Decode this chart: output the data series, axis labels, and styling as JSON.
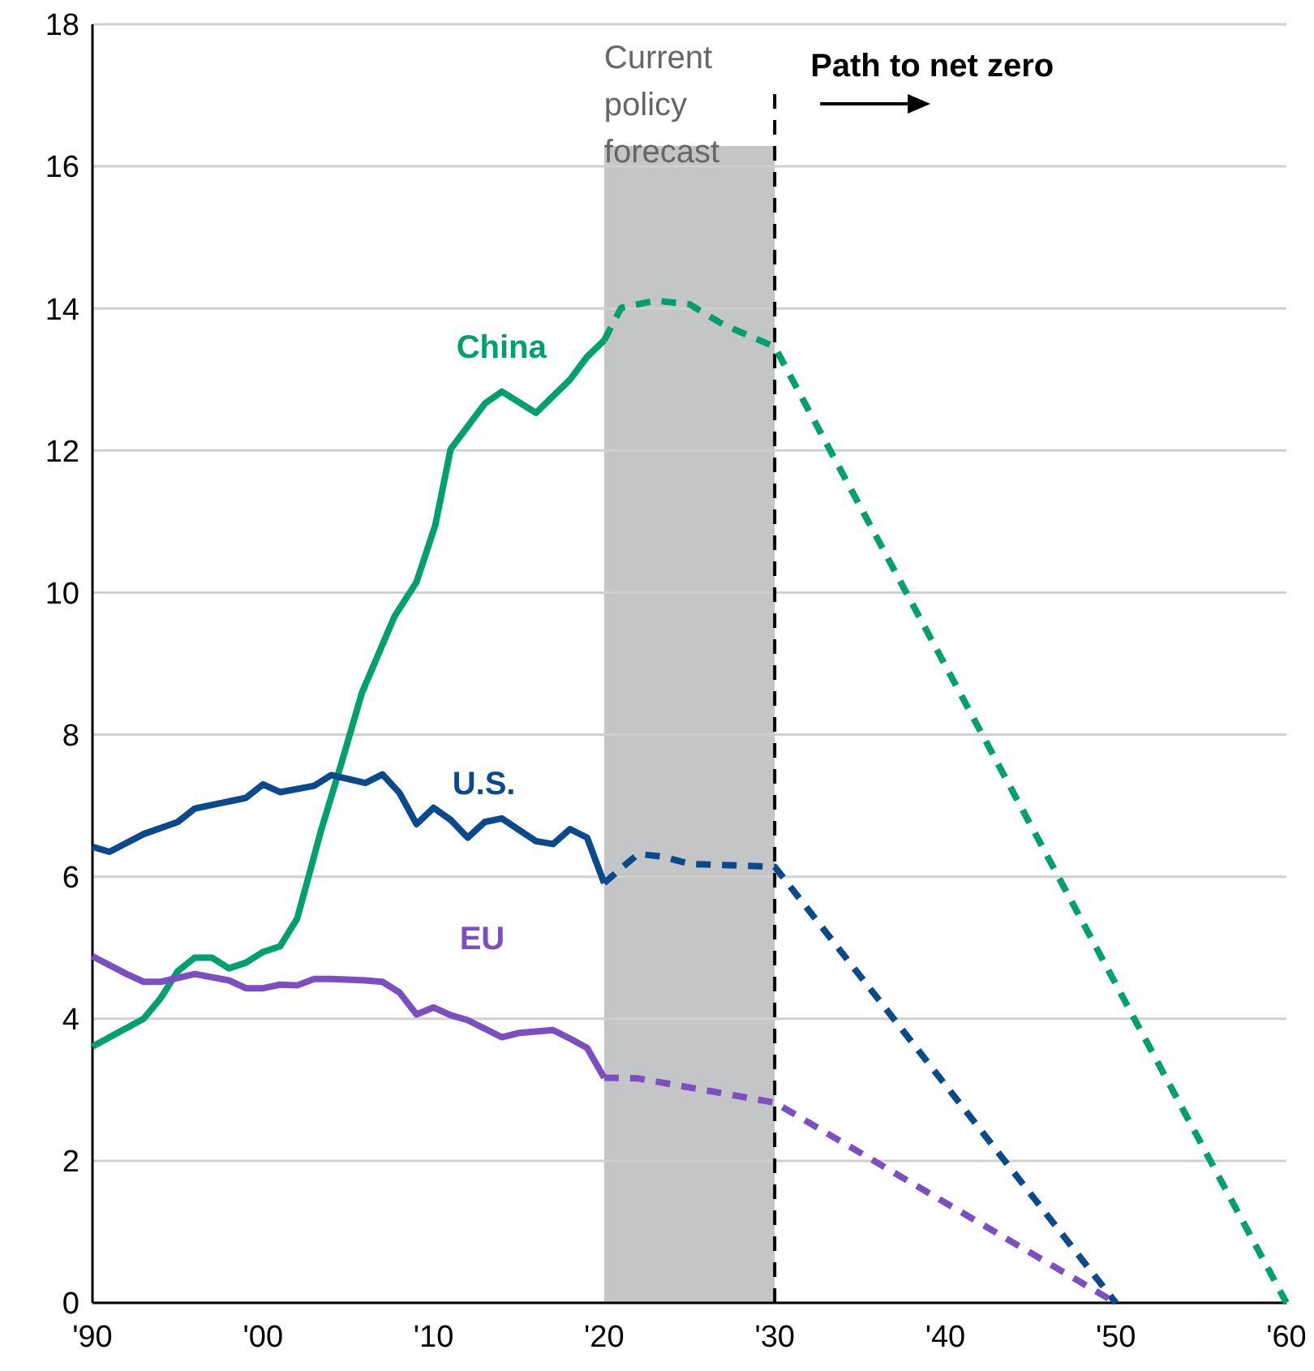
{
  "chart_data": {
    "type": "line",
    "xlim": [
      1990,
      2060
    ],
    "xticks": [
      {
        "value": 1990,
        "label": "'90"
      },
      {
        "value": 2000,
        "label": "'00"
      },
      {
        "value": 2010,
        "label": "'10"
      },
      {
        "value": 2020,
        "label": "'20"
      },
      {
        "value": 2030,
        "label": "'30"
      },
      {
        "value": 2040,
        "label": "'40"
      },
      {
        "value": 2050,
        "label": "'50"
      },
      {
        "value": 2060,
        "label": "'60"
      }
    ],
    "ylim": [
      0,
      18
    ],
    "yticks": [
      0,
      2,
      4,
      6,
      8,
      10,
      12,
      14,
      16,
      18
    ],
    "grid": "y",
    "marker": "none",
    "series": [
      {
        "name": "China",
        "color": "#00a06e",
        "line_style": "solid",
        "x": [
          1990,
          1992,
          1993,
          1994,
          1995,
          1996,
          1997,
          1998,
          1999,
          2000,
          2001,
          2002,
          2002.5,
          2003.4,
          2004.6,
          2005.8,
          2007.7,
          2009,
          2010.1,
          2011,
          2013,
          2014,
          2016,
          2018,
          2019,
          2020
        ],
        "values": [
          3.61,
          3.87,
          4.0,
          4.29,
          4.67,
          4.86,
          4.86,
          4.71,
          4.79,
          4.94,
          5.02,
          5.41,
          5.85,
          6.65,
          7.6,
          8.59,
          9.66,
          10.15,
          10.95,
          12.02,
          12.66,
          12.83,
          12.53,
          13.0,
          13.32,
          13.55
        ]
      },
      {
        "color": "#00a06e",
        "line_style": "dashed",
        "x": [
          2020,
          2021,
          2023,
          2025,
          2027,
          2030,
          2060
        ],
        "values": [
          13.55,
          14.01,
          14.11,
          14.06,
          13.77,
          13.46,
          0
        ]
      },
      {
        "name": "U.S.",
        "color": "#0a4a8c",
        "line_style": "solid",
        "x": [
          1990,
          1991,
          1993,
          1995,
          1996,
          1999,
          2000,
          2001,
          2003,
          2004,
          2006,
          2007,
          2008,
          2009,
          2010,
          2011,
          2012,
          2013,
          2014,
          2016,
          2017,
          2018,
          2019,
          2020
        ],
        "values": [
          6.42,
          6.35,
          6.6,
          6.77,
          6.96,
          7.11,
          7.3,
          7.19,
          7.28,
          7.43,
          7.32,
          7.44,
          7.18,
          6.74,
          6.97,
          6.8,
          6.55,
          6.77,
          6.82,
          6.5,
          6.46,
          6.67,
          6.55,
          5.91
        ]
      },
      {
        "color": "#0a4a8c",
        "line_style": "dashed",
        "x": [
          2020,
          2021,
          2022,
          2023.5,
          2025,
          2030,
          2050
        ],
        "values": [
          5.91,
          6.12,
          6.32,
          6.28,
          6.18,
          6.14,
          0
        ]
      },
      {
        "name": "EU",
        "color": "#7b4fc0",
        "line_style": "solid",
        "x": [
          1990,
          1992,
          1993,
          1994,
          1996,
          1998,
          1999,
          2000,
          2001,
          2002,
          2003,
          2004,
          2006,
          2007,
          2008,
          2009,
          2010,
          2011,
          2012,
          2014,
          2015,
          2017,
          2018,
          2019,
          2020
        ],
        "values": [
          4.88,
          4.63,
          4.52,
          4.52,
          4.63,
          4.54,
          4.43,
          4.43,
          4.48,
          4.47,
          4.56,
          4.56,
          4.54,
          4.52,
          4.37,
          4.06,
          4.16,
          4.05,
          3.98,
          3.74,
          3.8,
          3.84,
          3.72,
          3.59,
          3.17
        ]
      },
      {
        "color": "#7b4fc0",
        "line_style": "dashed",
        "x": [
          2020,
          2022,
          2030,
          2050
        ],
        "values": [
          3.17,
          3.16,
          2.82,
          0
        ]
      }
    ],
    "bands": [
      {
        "axis": "x",
        "from": 2020,
        "to": 2030,
        "label": "Current policy forecast",
        "color": "#c4c5c7"
      }
    ],
    "ref_lines": [
      {
        "axis": "x",
        "value": 2030,
        "label": "Path to net zero",
        "color": "#000000",
        "line_style": "dashed"
      }
    ]
  }
}
